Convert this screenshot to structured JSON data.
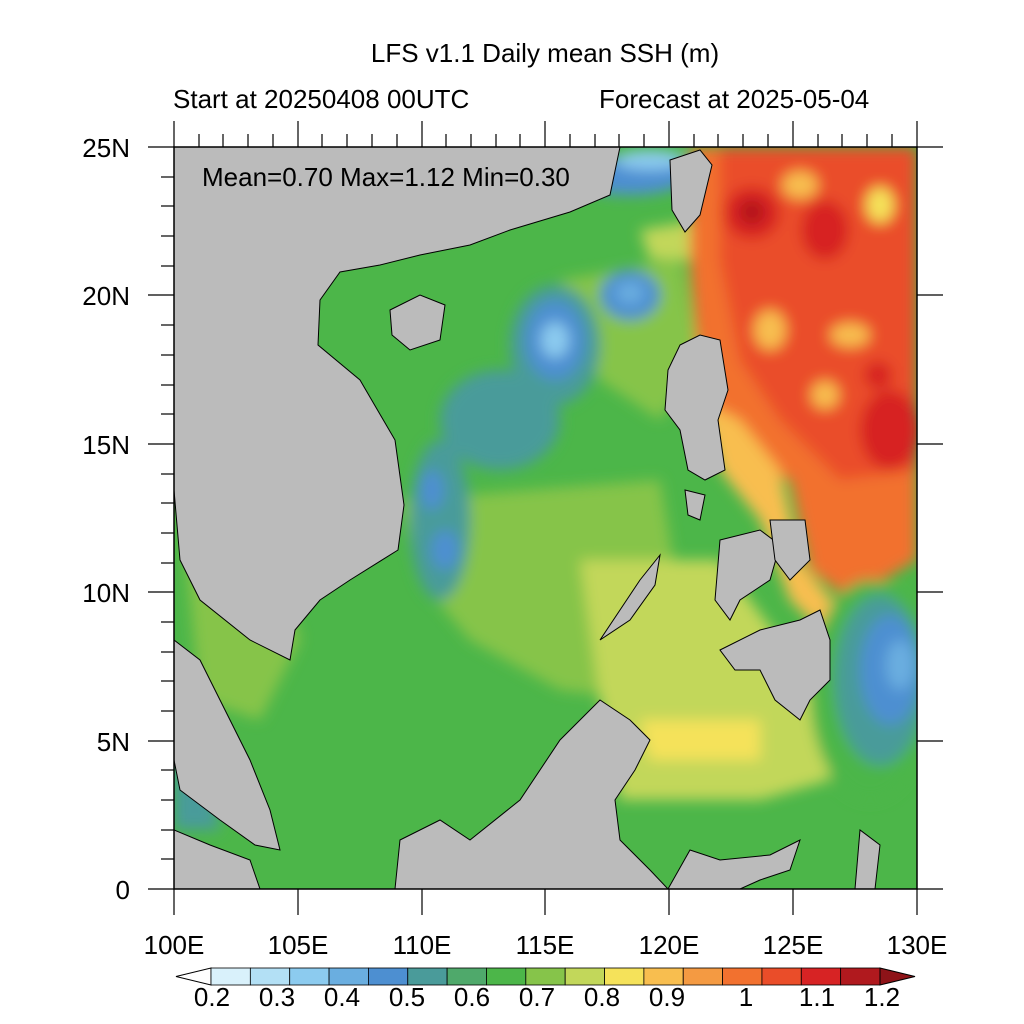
{
  "title": "LFS v1.1 Daily mean SSH (m)",
  "subtitle_left": "Start at 20250408 00UTC",
  "subtitle_right": "Forecast at 2025-05-04",
  "stats": "Mean=0.70  Max=1.12  Min=0.30",
  "lat_labels": [
    "25N",
    "20N",
    "15N",
    "10N",
    "5N",
    "0"
  ],
  "lon_labels": [
    "100E",
    "105E",
    "110E",
    "115E",
    "120E",
    "125E",
    "130E"
  ],
  "colorbar_labels": [
    "0.2",
    "0.3",
    "0.4",
    "0.5",
    "0.6",
    "0.7",
    "0.8",
    "0.9",
    "1",
    "1.1",
    "1.2"
  ],
  "colorbar_colors": [
    "#d9f1fb",
    "#b3e0f5",
    "#8ccbef",
    "#6aaee0",
    "#4d8fd1",
    "#4a9b9a",
    "#4fa96b",
    "#4cb649",
    "#86c44a",
    "#c2d75a",
    "#f5e25a",
    "#f8be4f",
    "#f49a42",
    "#f2712f",
    "#ea4d29",
    "#d72324",
    "#b0191e"
  ],
  "land_color": "#bbbbbb",
  "map_extent": {
    "lon": [
      100,
      130
    ],
    "lat": [
      0,
      25
    ]
  }
}
